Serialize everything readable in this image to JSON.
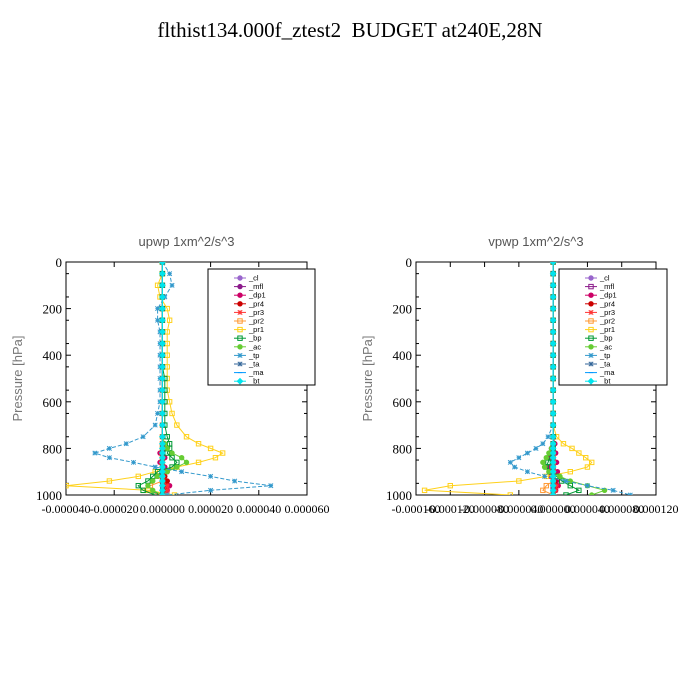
{
  "figure": {
    "title": "flthist134.000f_ztest2  BUDGET at240E,28N"
  },
  "chart_data": [
    {
      "type": "line",
      "title": "upwp   1xm^2/s^3",
      "ylabel": "Pressure [hPa]",
      "xlabel": "",
      "xlim": [
        -4e-05,
        6e-05
      ],
      "ylim": [
        1000,
        0
      ],
      "x_ticks": [
        -4e-05,
        -2e-05,
        0.0,
        2e-05,
        4e-05,
        6e-05
      ],
      "x_tick_labels": [
        "-0.000040",
        "-0.000020",
        "0.000000",
        "0.000020",
        "0.000040",
        "0.000060"
      ],
      "y_ticks": [
        0,
        200,
        400,
        600,
        800,
        1000
      ],
      "y_tick_labels": [
        "0",
        "200",
        "400",
        "600",
        "800",
        "1000"
      ],
      "legend": "top-right",
      "pressure": [
        0,
        50,
        100,
        150,
        200,
        250,
        300,
        350,
        400,
        450,
        500,
        550,
        600,
        650,
        700,
        750,
        780,
        800,
        820,
        840,
        860,
        880,
        900,
        920,
        940,
        960,
        980,
        1000
      ],
      "series": [
        {
          "name": "_cl",
          "color": "#9966cc",
          "marker": "circle",
          "values": [
            0,
            0,
            0,
            0,
            0,
            0,
            0,
            0,
            0,
            0,
            0,
            0,
            0,
            0,
            0,
            0,
            0,
            0,
            0,
            0,
            0,
            0,
            0,
            0,
            0,
            0,
            0,
            0
          ]
        },
        {
          "name": "_mfl",
          "color": "#8b1a8b",
          "marker": "circle",
          "values": [
            0,
            0,
            0,
            0,
            0,
            0,
            0,
            0,
            0,
            0,
            0,
            0,
            0,
            0,
            0,
            0,
            0,
            0,
            0,
            0,
            0,
            0,
            0,
            0,
            0,
            0,
            0,
            0
          ]
        },
        {
          "name": "_dp1",
          "color": "#cc0066",
          "marker": "circle",
          "values": [
            0,
            0,
            0,
            0,
            0,
            0,
            0,
            0,
            0,
            0,
            0,
            0,
            0,
            0,
            0,
            0,
            0,
            1e-06,
            -1e-06,
            1e-06,
            -1e-06,
            1e-06,
            2e-06,
            -2e-06,
            2e-06,
            3e-06,
            2e-06,
            1e-06
          ]
        },
        {
          "name": "_pr4",
          "color": "#cc0000",
          "marker": "circle",
          "values": [
            0,
            0,
            0,
            0,
            0,
            0,
            0,
            0,
            0,
            0,
            0,
            0,
            0,
            0,
            0,
            0,
            0,
            0,
            0,
            0,
            0,
            0,
            0,
            1e-06,
            2e-06,
            1e-06,
            1e-06,
            0
          ]
        },
        {
          "name": "_pr3",
          "color": "#ff3333",
          "marker": "cross",
          "values": [
            0,
            0,
            0,
            0,
            0,
            0,
            0,
            0,
            0,
            0,
            0,
            0,
            0,
            0,
            0,
            0,
            0,
            0,
            0,
            0,
            0,
            0,
            0,
            0,
            0,
            2e-06,
            2e-06,
            1e-06
          ]
        },
        {
          "name": "_pr2",
          "color": "#ff9933",
          "marker": "square",
          "values": [
            0,
            0,
            0,
            0,
            0,
            0,
            0,
            0,
            0,
            0,
            0,
            0,
            0,
            0,
            0,
            0,
            0,
            0,
            0,
            0,
            0,
            0,
            0,
            0,
            0,
            -5e-06,
            -8e-06,
            0
          ]
        },
        {
          "name": "_pr1",
          "color": "#ffd11a",
          "marker": "square",
          "values": [
            0,
            0,
            -2e-06,
            -1e-06,
            2e-06,
            3e-06,
            2e-06,
            2e-06,
            2e-06,
            2e-06,
            2e-06,
            2e-06,
            3e-06,
            4e-06,
            6e-06,
            1e-05,
            1.5e-05,
            2e-05,
            2.5e-05,
            2.2e-05,
            1.5e-05,
            6e-06,
            -3e-06,
            -1e-05,
            -2.2e-05,
            -4e-05,
            -6e-06,
            5e-06
          ]
        },
        {
          "name": "_bp",
          "color": "#009933",
          "marker": "square",
          "values": [
            0,
            0,
            0,
            0,
            0,
            0,
            0,
            0,
            0,
            0,
            1e-06,
            1e-06,
            1e-06,
            1e-06,
            1e-06,
            2e-06,
            3e-06,
            3e-06,
            2e-06,
            4e-06,
            6e-06,
            4e-06,
            -2e-06,
            -4e-06,
            -6e-06,
            -1e-05,
            -8e-06,
            -3e-06
          ]
        },
        {
          "name": "_ac",
          "color": "#66cc33",
          "marker": "circle",
          "values": [
            0,
            0,
            0,
            0,
            0,
            0,
            0,
            0,
            0,
            0,
            0,
            0,
            0,
            0,
            0,
            0,
            1e-06,
            2e-06,
            4e-06,
            8e-06,
            1e-05,
            6e-06,
            2e-06,
            -2e-06,
            -4e-06,
            -6e-06,
            -4e-06,
            0
          ]
        },
        {
          "name": "_tp",
          "color": "#3399cc",
          "marker": "cross",
          "values": [
            0,
            3e-06,
            4e-06,
            1e-06,
            -2e-06,
            -2e-06,
            -1e-06,
            -1e-06,
            -1e-06,
            -1e-06,
            -1e-06,
            -1e-06,
            -1e-06,
            -2e-06,
            -3e-06,
            -8e-06,
            -1.5e-05,
            -2.2e-05,
            -2.8e-05,
            -2.2e-05,
            -1.2e-05,
            -3e-06,
            8e-06,
            2e-05,
            3e-05,
            4.5e-05,
            2e-05,
            2e-06
          ]
        },
        {
          "name": "_ta",
          "color": "#336699",
          "marker": "cross",
          "values": [
            0,
            0,
            0,
            0,
            0,
            0,
            0,
            0,
            0,
            0,
            0,
            0,
            0,
            0,
            0,
            0,
            0,
            0,
            0,
            0,
            0,
            0,
            0,
            0,
            0,
            0,
            0,
            0
          ]
        },
        {
          "name": "_ma",
          "color": "#0099ff",
          "marker": "dash",
          "values": [
            0,
            0,
            0,
            0,
            0,
            0,
            0,
            0,
            0,
            0,
            0,
            0,
            0,
            0,
            0,
            0,
            0,
            0,
            0,
            0,
            0,
            0,
            0,
            0,
            0,
            0,
            0,
            0
          ]
        },
        {
          "name": "_bt",
          "color": "#00e5ee",
          "marker": "diamond",
          "values": [
            0,
            0,
            0,
            0,
            0,
            0,
            0,
            0,
            0,
            0,
            0,
            0,
            0,
            0,
            0,
            0,
            0,
            0,
            0,
            0,
            0,
            0,
            0,
            0,
            0,
            0,
            0,
            0
          ]
        }
      ]
    },
    {
      "type": "line",
      "title": "vpwp   1xm^2/s^3",
      "ylabel": "Pressure [hPa]",
      "xlabel": "",
      "xlim": [
        -0.00016,
        0.00012
      ],
      "ylim": [
        1000,
        0
      ],
      "x_ticks": [
        -0.00016,
        -0.00012,
        -8e-05,
        -4e-05,
        0.0,
        4e-05,
        8e-05,
        0.00012
      ],
      "x_tick_labels": [
        "-0.000160",
        "-0.000120",
        "-0.000080",
        "-0.000040",
        "0.000000",
        "0.000040",
        "0.000080",
        "0.000120"
      ],
      "y_ticks": [
        0,
        200,
        400,
        600,
        800,
        1000
      ],
      "y_tick_labels": [
        "0",
        "200",
        "400",
        "600",
        "800",
        "1000"
      ],
      "legend": "top-right",
      "pressure": [
        0,
        50,
        100,
        150,
        200,
        250,
        300,
        350,
        400,
        450,
        500,
        550,
        600,
        650,
        700,
        750,
        780,
        800,
        820,
        840,
        860,
        880,
        900,
        920,
        940,
        960,
        980,
        1000
      ],
      "series": [
        {
          "name": "_cl",
          "color": "#9966cc",
          "marker": "circle",
          "values": [
            0,
            0,
            0,
            0,
            0,
            0,
            0,
            0,
            0,
            0,
            0,
            0,
            0,
            0,
            0,
            0,
            0,
            0,
            0,
            0,
            0,
            0,
            0,
            0,
            0,
            0,
            0,
            0
          ]
        },
        {
          "name": "_mfl",
          "color": "#8b1a8b",
          "marker": "square",
          "values": [
            0,
            0,
            0,
            0,
            0,
            0,
            0,
            0,
            0,
            0,
            0,
            0,
            0,
            0,
            0,
            0,
            0,
            0,
            0,
            0,
            0,
            0,
            0,
            0,
            0,
            0,
            0,
            0
          ]
        },
        {
          "name": "_dp1",
          "color": "#cc0066",
          "marker": "circle",
          "values": [
            0,
            0,
            0,
            0,
            0,
            0,
            0,
            0,
            0,
            0,
            0,
            0,
            0,
            0,
            0,
            0,
            2e-06,
            -2e-06,
            3e-06,
            -3e-06,
            4e-06,
            -4e-06,
            5e-06,
            -3e-06,
            4e-06,
            6e-06,
            3e-06,
            0
          ]
        },
        {
          "name": "_pr4",
          "color": "#cc0000",
          "marker": "circle",
          "values": [
            0,
            0,
            0,
            0,
            0,
            0,
            0,
            0,
            0,
            0,
            0,
            0,
            0,
            0,
            0,
            0,
            0,
            0,
            0,
            0,
            0,
            0,
            0,
            0,
            2e-06,
            3e-06,
            2e-06,
            0
          ]
        },
        {
          "name": "_pr3",
          "color": "#ff3333",
          "marker": "cross",
          "values": [
            0,
            0,
            0,
            0,
            0,
            0,
            0,
            0,
            0,
            0,
            0,
            0,
            0,
            0,
            0,
            0,
            0,
            0,
            0,
            0,
            0,
            0,
            0,
            0,
            0,
            4e-06,
            3e-06,
            0
          ]
        },
        {
          "name": "_pr2",
          "color": "#ff9933",
          "marker": "square",
          "values": [
            0,
            0,
            0,
            0,
            0,
            0,
            0,
            0,
            0,
            0,
            0,
            0,
            0,
            0,
            0,
            0,
            0,
            0,
            0,
            0,
            0,
            0,
            0,
            0,
            0,
            -8e-06,
            -1.2e-05,
            0
          ]
        },
        {
          "name": "_pr1",
          "color": "#ffd11a",
          "marker": "square",
          "values": [
            0,
            0,
            0,
            0,
            0,
            0,
            0,
            0,
            0,
            0,
            0,
            0,
            0,
            0,
            0,
            4e-06,
            1.2e-05,
            2.2e-05,
            3e-05,
            3.8e-05,
            4.5e-05,
            4e-05,
            2e-05,
            -8e-06,
            -4e-05,
            -0.00012,
            -0.00015,
            -5e-05
          ]
        },
        {
          "name": "_bp",
          "color": "#009933",
          "marker": "square",
          "values": [
            0,
            0,
            0,
            0,
            0,
            0,
            0,
            0,
            0,
            0,
            0,
            0,
            0,
            0,
            0,
            0,
            0,
            0,
            -2e-06,
            -4e-06,
            -6e-06,
            -8e-06,
            -4e-06,
            4e-06,
            1e-05,
            2e-05,
            3e-05,
            1.5e-05
          ]
        },
        {
          "name": "_ac",
          "color": "#66cc33",
          "marker": "circle",
          "values": [
            0,
            0,
            0,
            0,
            0,
            0,
            0,
            0,
            0,
            0,
            0,
            0,
            0,
            0,
            0,
            0,
            0,
            -2e-06,
            -5e-06,
            -8e-06,
            -1.2e-05,
            -1e-05,
            -5e-06,
            8e-06,
            2e-05,
            4e-05,
            6e-05,
            4.5e-05
          ]
        },
        {
          "name": "_tp",
          "color": "#3399cc",
          "marker": "cross",
          "values": [
            0,
            0,
            0,
            0,
            0,
            0,
            0,
            0,
            0,
            0,
            0,
            0,
            0,
            0,
            0,
            -6e-06,
            -1.2e-05,
            -2e-05,
            -3e-05,
            -4e-05,
            -5e-05,
            -4.5e-05,
            -3e-05,
            -1e-05,
            1.5e-05,
            4e-05,
            7e-05,
            9e-05
          ]
        },
        {
          "name": "_ta",
          "color": "#336699",
          "marker": "cross",
          "values": [
            0,
            0,
            0,
            0,
            0,
            0,
            0,
            0,
            0,
            0,
            0,
            0,
            0,
            0,
            0,
            0,
            0,
            0,
            0,
            0,
            0,
            0,
            0,
            0,
            0,
            0,
            0,
            0
          ]
        },
        {
          "name": "_ma",
          "color": "#0099ff",
          "marker": "dash",
          "values": [
            0,
            0,
            0,
            0,
            0,
            0,
            0,
            0,
            0,
            0,
            0,
            0,
            0,
            0,
            0,
            0,
            0,
            0,
            0,
            0,
            0,
            0,
            0,
            0,
            0,
            0,
            0,
            0
          ]
        },
        {
          "name": "_bt",
          "color": "#00e5ee",
          "marker": "diamond",
          "values": [
            0,
            0,
            0,
            0,
            0,
            0,
            0,
            0,
            0,
            0,
            0,
            0,
            0,
            0,
            0,
            0,
            0,
            0,
            0,
            0,
            0,
            0,
            0,
            0,
            0,
            0,
            0,
            0
          ]
        }
      ]
    }
  ]
}
